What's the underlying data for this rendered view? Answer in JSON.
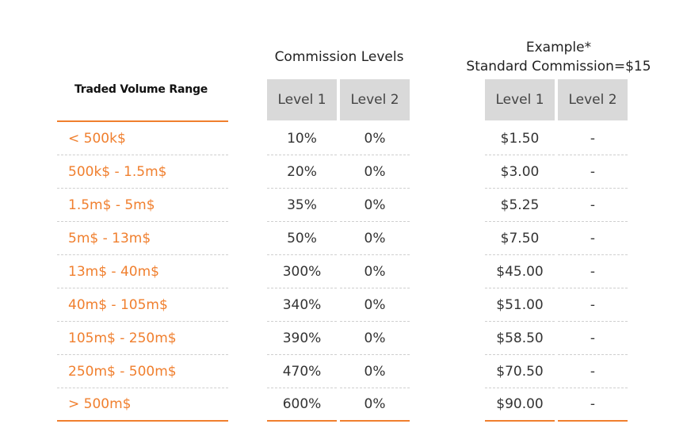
{
  "headings": {
    "volume": "Traded Volume Range",
    "commission_levels": "Commission Levels",
    "example_line1": "Example*",
    "example_line2": "Standard Commission=$15"
  },
  "level_headers": {
    "commission": [
      "Level 1",
      "Level 2"
    ],
    "example": [
      "Level 1",
      "Level 2"
    ]
  },
  "rows": [
    {
      "range": "< 500k$",
      "level1": "10%",
      "level2": "0%",
      "ex1": "$1.50",
      "ex2": "-"
    },
    {
      "range": "500k$  - 1.5m$",
      "level1": "20%",
      "level2": "0%",
      "ex1": "$3.00",
      "ex2": "-"
    },
    {
      "range": "1.5m$  - 5m$",
      "level1": "35%",
      "level2": "0%",
      "ex1": "$5.25",
      "ex2": "-"
    },
    {
      "range": "5m$  - 13m$",
      "level1": "50%",
      "level2": "0%",
      "ex1": "$7.50",
      "ex2": "-"
    },
    {
      "range": "13m$  - 40m$",
      "level1": "300%",
      "level2": "0%",
      "ex1": "$45.00",
      "ex2": "-"
    },
    {
      "range": "40m$  - 105m$",
      "level1": "340%",
      "level2": "0%",
      "ex1": "$51.00",
      "ex2": "-"
    },
    {
      "range": "105m$  - 250m$",
      "level1": "390%",
      "level2": "0%",
      "ex1": "$58.50",
      "ex2": "-"
    },
    {
      "range": "250m$  - 500m$",
      "level1": "470%",
      "level2": "0%",
      "ex1": "$70.50",
      "ex2": "-"
    },
    {
      "range": "> 500m$",
      "level1": "600%",
      "level2": "0%",
      "ex1": "$90.00",
      "ex2": "-"
    }
  ],
  "colors": {
    "accent": "#f07f2e",
    "header_bg": "#d9d9d9"
  }
}
